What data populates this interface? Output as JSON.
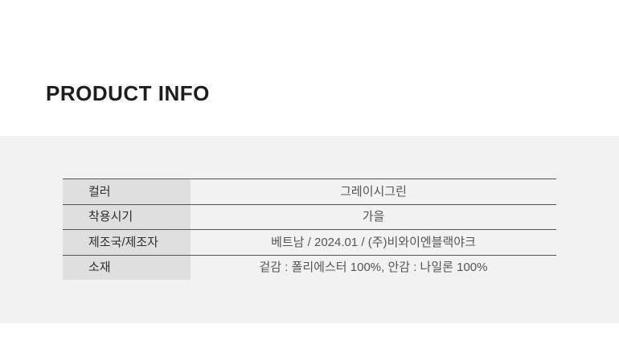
{
  "header": {
    "title": "PRODUCT INFO"
  },
  "product_table": {
    "rows": [
      {
        "label": "컬러",
        "value": "그레이시그린"
      },
      {
        "label": "착용시기",
        "value": "가을"
      },
      {
        "label": "제조국/제조자",
        "value": "베트남 / 2024.01 / (주)비와이엔블랙야크"
      },
      {
        "label": "소재",
        "value": "겉감 : 폴리에스터 100%, 안감 : 나일론 100%"
      }
    ]
  },
  "colors": {
    "page_background": "#ffffff",
    "section_background": "#f2f2f2",
    "label_cell_background": "#dfdfdf",
    "row_border": "#555555",
    "heading_text": "#1d1d1d",
    "label_text": "#2f2f2f",
    "value_text": "#555555"
  }
}
